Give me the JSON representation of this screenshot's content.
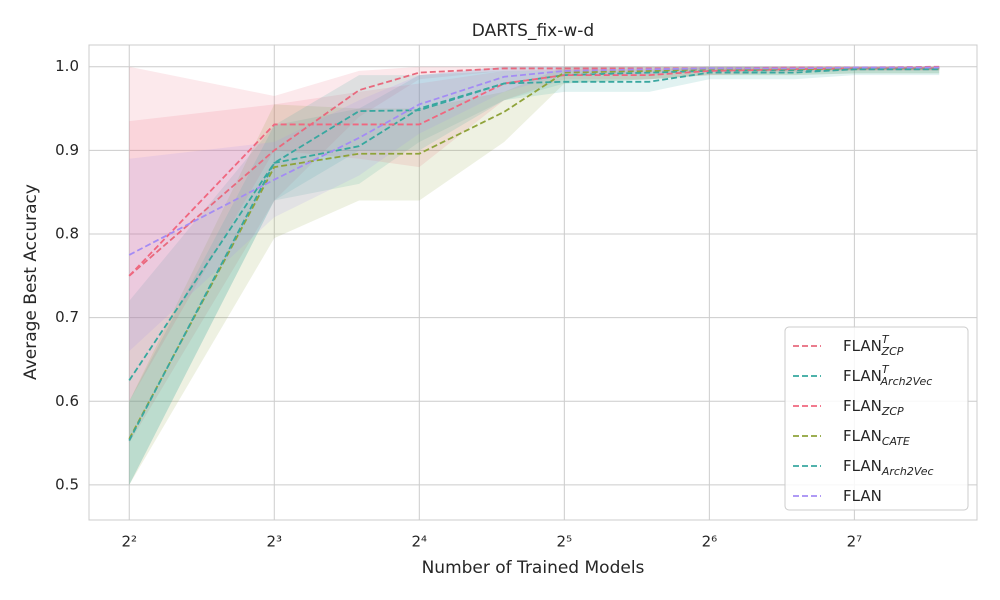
{
  "chart_data": {
    "type": "line",
    "title": "DARTS_fix-w-d",
    "x_label": "Number of Trained Models",
    "y_label": "Average Best Accuracy",
    "x": [
      4,
      8,
      12,
      16,
      24,
      32,
      48,
      64,
      96,
      128,
      192
    ],
    "xscale": "log2",
    "xlim": [
      3.3,
      230
    ],
    "ylim": [
      0.458,
      1.026
    ],
    "xticks": [
      {
        "value": 4,
        "label": "2²"
      },
      {
        "value": 8,
        "label": "2³"
      },
      {
        "value": 16,
        "label": "2⁴"
      },
      {
        "value": 32,
        "label": "2⁵"
      },
      {
        "value": 64,
        "label": "2⁶"
      },
      {
        "value": 128,
        "label": "2⁷"
      }
    ],
    "yticks": [
      0.5,
      0.6,
      0.7,
      0.8,
      0.9,
      {
        "value": 1.0,
        "label": "1.0"
      }
    ],
    "grid": true,
    "legend": "lower right",
    "line_style": "dashed",
    "series": [
      {
        "name": "FLAN",
        "superscript": "T",
        "subscript": "ZCP",
        "color": "#e8697d",
        "values": [
          0.75,
          0.9,
          0.972,
          0.993,
          0.998,
          0.998,
          0.998,
          0.998,
          0.999,
          0.999,
          1.0
        ],
        "lower": [
          0.55,
          0.84,
          0.94,
          0.985,
          0.995,
          0.995,
          0.995,
          0.996,
          0.997,
          0.998,
          0.998
        ],
        "upper": [
          1.0,
          0.965,
          0.995,
          1.0,
          1.0,
          1.0,
          1.0,
          1.0,
          1.0,
          1.0,
          1.0
        ]
      },
      {
        "name": "FLAN",
        "superscript": "T",
        "subscript": "Arch2Vec",
        "color": "#36a89e",
        "values": [
          0.625,
          0.885,
          0.905,
          0.95,
          0.98,
          0.99,
          0.993,
          0.995,
          0.996,
          0.997,
          0.997
        ],
        "lower": [
          0.5,
          0.84,
          0.86,
          0.91,
          0.96,
          0.98,
          0.985,
          0.99,
          0.99,
          0.992,
          0.992
        ],
        "upper": [
          0.72,
          0.93,
          0.95,
          0.99,
          1.0,
          1.0,
          1.0,
          1.0,
          1.0,
          1.0,
          1.0
        ]
      },
      {
        "name": "FLAN",
        "subscript": "ZCP",
        "color": "#f0677f",
        "values": [
          0.75,
          0.931,
          0.931,
          0.931,
          0.98,
          0.99,
          0.99,
          0.995,
          0.997,
          0.998,
          0.998
        ],
        "lower": [
          0.6,
          0.9,
          0.89,
          0.88,
          0.96,
          0.985,
          0.985,
          0.99,
          0.993,
          0.995,
          0.995
        ],
        "upper": [
          0.935,
          0.955,
          0.97,
          0.98,
          0.995,
          0.997,
          0.997,
          1.0,
          1.0,
          1.0,
          1.0
        ]
      },
      {
        "name": "FLAN",
        "subscript": "CATE",
        "color": "#8fa33a",
        "values": [
          0.555,
          0.88,
          0.896,
          0.896,
          0.946,
          0.993,
          0.995,
          0.997,
          0.997,
          0.998,
          0.998
        ],
        "lower": [
          0.5,
          0.795,
          0.84,
          0.84,
          0.91,
          0.98,
          0.985,
          0.99,
          0.99,
          0.992,
          0.992
        ],
        "upper": [
          0.6,
          0.955,
          0.95,
          0.95,
          0.97,
          1.0,
          1.0,
          1.0,
          1.0,
          1.0,
          1.0
        ]
      },
      {
        "name": "FLAN",
        "subscript": "Arch2Vec",
        "color": "#39a7a0",
        "values": [
          0.553,
          0.885,
          0.947,
          0.948,
          0.98,
          0.982,
          0.982,
          0.993,
          0.993,
          0.997,
          0.997
        ],
        "lower": [
          0.5,
          0.84,
          0.9,
          0.9,
          0.96,
          0.97,
          0.97,
          0.985,
          0.985,
          0.99,
          0.99
        ],
        "upper": [
          0.6,
          0.93,
          0.99,
          0.99,
          0.995,
          0.995,
          0.995,
          1.0,
          1.0,
          1.0,
          1.0
        ]
      },
      {
        "name": "FLAN",
        "color": "#a48cf4",
        "values": [
          0.775,
          0.865,
          0.915,
          0.955,
          0.988,
          0.995,
          0.997,
          0.998,
          0.998,
          0.999,
          0.999
        ],
        "lower": [
          0.66,
          0.82,
          0.87,
          0.92,
          0.97,
          0.99,
          0.99,
          0.995,
          0.995,
          0.996,
          0.996
        ],
        "upper": [
          0.89,
          0.91,
          0.96,
          0.99,
          1.0,
          1.0,
          1.0,
          1.0,
          1.0,
          1.0,
          1.0
        ]
      }
    ]
  }
}
